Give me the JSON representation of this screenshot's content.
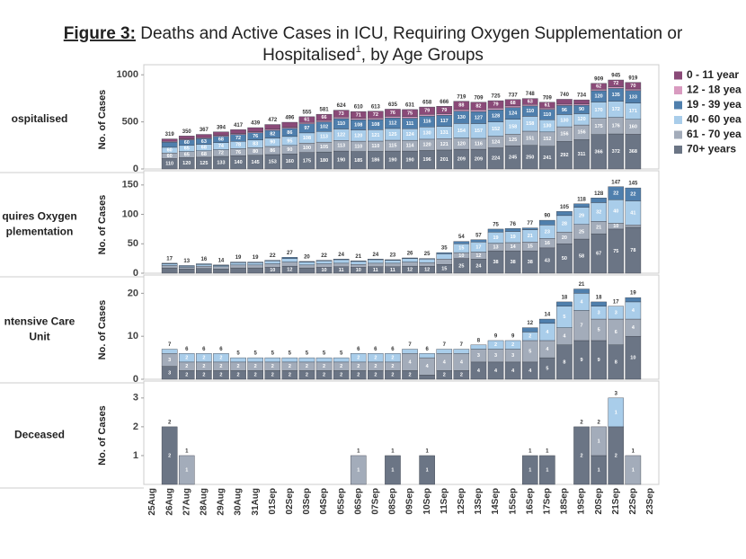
{
  "title": {
    "prefix": "Figure 3:",
    "line1": " Deaths and Active Cases in ICU, Requiring Oxygen Supplementation or",
    "line2a": "Hospitalised",
    "note": "1",
    "line2b": ", by Age Groups"
  },
  "chart_data": [
    {
      "type": "bar",
      "label": [
        "ospitalised"
      ],
      "ylabel": "No. of Cases",
      "ylim": [
        0,
        1050
      ],
      "yticks": [
        0,
        500,
        1000
      ],
      "series": [
        {
          "name": "0 - 11 year",
          "color": "#8a4a78",
          "values": [
            null,
            26,
            31,
            34,
            37,
            41,
            44,
            49,
            53,
            61,
            66,
            73,
            71,
            72,
            76,
            75,
            79,
            79,
            88,
            82,
            79,
            68,
            63,
            61,
            52,
            44,
            62,
            72,
            70,
            null
          ]
        },
        {
          "name": "12 - 18 yea",
          "color": "#d99bc0",
          "values": [
            null,
            8,
            9,
            9,
            10,
            10,
            11,
            12,
            12,
            14,
            15,
            16,
            16,
            16,
            17,
            17,
            17,
            17,
            18,
            18,
            18,
            17,
            16,
            15,
            14,
            13,
            16,
            18,
            17,
            null
          ]
        },
        {
          "name": "19 - 39 yea",
          "color": "#4f7fad",
          "values": [
            null,
            55,
            60,
            63,
            68,
            72,
            76,
            82,
            86,
            97,
            102,
            110,
            108,
            108,
            112,
            111,
            116,
            117,
            130,
            127,
            128,
            124,
            110,
            110,
            96,
            90,
            120,
            135,
            133,
            null
          ]
        },
        {
          "name": "40 - 60 yea",
          "color": "#a9cdea",
          "values": [
            null,
            60,
            65,
            68,
            74,
            78,
            83,
            90,
            95,
            108,
            113,
            122,
            120,
            121,
            125,
            124,
            130,
            131,
            154,
            157,
            152,
            158,
            158,
            130,
            130,
            120,
            170,
            172,
            171,
            null
          ]
        },
        {
          "name": "61 - 70 yea",
          "color": "#a3acba",
          "values": [
            null,
            60,
            65,
            68,
            72,
            76,
            80,
            86,
            90,
            100,
            105,
            113,
            110,
            110,
            115,
            114,
            120,
            121,
            120,
            116,
            124,
            125,
            151,
            152,
            156,
            156,
            175,
            176,
            160,
            null
          ]
        },
        {
          "name": "70+ years",
          "color": "#6b7585",
          "values": [
            null,
            110,
            120,
            125,
            133,
            140,
            145,
            153,
            160,
            175,
            180,
            190,
            185,
            186,
            190,
            190,
            196,
            201,
            209,
            209,
            224,
            245,
            250,
            241,
            292,
            311,
            366,
            372,
            368,
            null
          ]
        }
      ],
      "totals": [
        null,
        319,
        350,
        367,
        394,
        417,
        439,
        472,
        496,
        555,
        581,
        624,
        610,
        613,
        635,
        631,
        658,
        666,
        719,
        709,
        725,
        737,
        748,
        709,
        740,
        734,
        909,
        945,
        919,
        null
      ]
    },
    {
      "type": "bar",
      "label": [
        "quires Oxygen",
        "plementation"
      ],
      "ylabel": "No. of Cases",
      "ylim": [
        0,
        165
      ],
      "yticks": [
        0,
        50,
        100,
        150
      ],
      "series": [
        {
          "color": "#8a4a78",
          "values": [
            null,
            0,
            0,
            0,
            0,
            0,
            0,
            0,
            0,
            0,
            0,
            0,
            0,
            0,
            0,
            0,
            0,
            0,
            0,
            0,
            0,
            0,
            0,
            0,
            0,
            0,
            0,
            0,
            0,
            null
          ]
        },
        {
          "color": "#d99bc0",
          "values": [
            null,
            0,
            0,
            0,
            0,
            0,
            0,
            0,
            0,
            0,
            0,
            0,
            0,
            0,
            0,
            0,
            0,
            0,
            0,
            0,
            0,
            0,
            0,
            0,
            0,
            0,
            0,
            0,
            0,
            null
          ]
        },
        {
          "color": "#4f7fad",
          "values": [
            null,
            1,
            1,
            1,
            1,
            1,
            1,
            1,
            2,
            1,
            1,
            1,
            1,
            1,
            1,
            1,
            1,
            2,
            4,
            4,
            5,
            5,
            3,
            8,
            7,
            6,
            8,
            22,
            22,
            null
          ]
        },
        {
          "color": "#a9cdea",
          "values": [
            null,
            3,
            2,
            3,
            2,
            4,
            4,
            5,
            6,
            5,
            5,
            6,
            5,
            6,
            5,
            6,
            6,
            9,
            15,
            17,
            19,
            19,
            21,
            23,
            28,
            29,
            32,
            40,
            41,
            null
          ]
        },
        {
          "color": "#a3acba",
          "values": [
            null,
            4,
            3,
            4,
            4,
            5,
            5,
            6,
            7,
            5,
            6,
            6,
            5,
            6,
            6,
            7,
            6,
            9,
            10,
            12,
            13,
            14,
            15,
            16,
            20,
            25,
            21,
            10,
            4,
            null
          ]
        },
        {
          "color": "#6b7585",
          "values": [
            null,
            9,
            7,
            8,
            7,
            9,
            9,
            10,
            12,
            9,
            10,
            11,
            10,
            11,
            11,
            12,
            12,
            15,
            25,
            24,
            38,
            38,
            38,
            43,
            50,
            58,
            67,
            75,
            78,
            null
          ]
        }
      ],
      "totals": [
        null,
        17,
        13,
        16,
        14,
        19,
        19,
        22,
        27,
        20,
        22,
        24,
        21,
        24,
        23,
        26,
        25,
        35,
        54,
        57,
        75,
        76,
        77,
        90,
        105,
        118,
        128,
        147,
        145,
        null
      ]
    },
    {
      "type": "bar",
      "label": [
        "ntensive Care",
        "Unit"
      ],
      "ylabel": "No. of Cases",
      "ylim": [
        0,
        23
      ],
      "yticks": [
        0,
        10,
        20
      ],
      "series": [
        {
          "color": "#8a4a78",
          "values": [
            null,
            0,
            0,
            0,
            0,
            0,
            0,
            0,
            0,
            0,
            0,
            0,
            0,
            0,
            0,
            0,
            0,
            0,
            0,
            0,
            0,
            0,
            0,
            0,
            0,
            0,
            0,
            0,
            0,
            null
          ]
        },
        {
          "color": "#d99bc0",
          "values": [
            null,
            0,
            0,
            0,
            0,
            0,
            0,
            0,
            0,
            0,
            0,
            0,
            0,
            0,
            0,
            0,
            0,
            0,
            0,
            0,
            0,
            0,
            0,
            0,
            0,
            0,
            0,
            0,
            0,
            null
          ]
        },
        {
          "color": "#4f7fad",
          "values": [
            null,
            0,
            0,
            0,
            0,
            0,
            0,
            0,
            0,
            0,
            0,
            0,
            0,
            0,
            0,
            0,
            0,
            0,
            0,
            0,
            0,
            0,
            1,
            1,
            1,
            1,
            1,
            0,
            1,
            null
          ]
        },
        {
          "color": "#a9cdea",
          "values": [
            null,
            1,
            2,
            2,
            2,
            1,
            1,
            1,
            1,
            1,
            1,
            1,
            2,
            2,
            2,
            1,
            1,
            1,
            1,
            1,
            2,
            2,
            2,
            4,
            5,
            4,
            3,
            3,
            4,
            null
          ]
        },
        {
          "color": "#a3acba",
          "values": [
            null,
            3,
            2,
            2,
            2,
            2,
            2,
            2,
            2,
            2,
            2,
            2,
            2,
            2,
            2,
            4,
            4,
            4,
            4,
            3,
            3,
            3,
            5,
            4,
            4,
            7,
            5,
            6,
            4,
            null
          ]
        },
        {
          "color": "#6b7585",
          "values": [
            null,
            3,
            2,
            2,
            2,
            2,
            2,
            2,
            2,
            2,
            2,
            2,
            2,
            2,
            2,
            2,
            1,
            2,
            2,
            4,
            4,
            4,
            4,
            5,
            8,
            9,
            9,
            8,
            10,
            null
          ]
        }
      ],
      "totals": [
        null,
        7,
        6,
        6,
        6,
        5,
        5,
        5,
        5,
        5,
        5,
        5,
        6,
        6,
        6,
        7,
        6,
        7,
        7,
        8,
        9,
        9,
        12,
        14,
        18,
        21,
        18,
        17,
        19,
        null
      ]
    },
    {
      "type": "bar",
      "label": [
        "Deceased"
      ],
      "ylabel": "No. of Cases",
      "ylim": [
        0,
        3.4
      ],
      "yticks": [
        1,
        2,
        3
      ],
      "categories": [
        "25Aug",
        "26Aug",
        "27Aug",
        "28Aug",
        "29Aug",
        "30Aug",
        "31Aug",
        "01Sep",
        "02Sep",
        "03Sep",
        "04Sep",
        "05Sep",
        "06Sep",
        "07Sep",
        "08Sep",
        "09Sep",
        "10Sep",
        "11Sep",
        "12Sep",
        "13Sep",
        "14Sep",
        "15Sep",
        "16Sep",
        "17Sep",
        "18Sep",
        "19Sep",
        "20Sep",
        "21Sep",
        "22Sep",
        "23Sep"
      ],
      "series": [
        {
          "color": "#8a4a78",
          "values": [
            null,
            0,
            0,
            0,
            0,
            0,
            0,
            0,
            0,
            0,
            0,
            0,
            0,
            0,
            0,
            0,
            0,
            0,
            0,
            0,
            0,
            0,
            0,
            0,
            0,
            0,
            0,
            0,
            0,
            null
          ]
        },
        {
          "color": "#d99bc0",
          "values": [
            null,
            0,
            0,
            0,
            0,
            0,
            0,
            0,
            0,
            0,
            0,
            0,
            0,
            0,
            0,
            0,
            0,
            0,
            0,
            0,
            0,
            0,
            0,
            0,
            0,
            0,
            0,
            0,
            0,
            null
          ]
        },
        {
          "color": "#4f7fad",
          "values": [
            null,
            0,
            0,
            0,
            0,
            0,
            0,
            0,
            0,
            0,
            0,
            0,
            0,
            0,
            0,
            0,
            0,
            0,
            0,
            0,
            0,
            0,
            0,
            0,
            0,
            0,
            0,
            0,
            0,
            null
          ]
        },
        {
          "color": "#a9cdea",
          "values": [
            null,
            0,
            0,
            0,
            0,
            0,
            0,
            0,
            0,
            0,
            0,
            0,
            0,
            0,
            0,
            0,
            0,
            0,
            0,
            0,
            0,
            0,
            0,
            0,
            0,
            0,
            0,
            1,
            0,
            null
          ]
        },
        {
          "color": "#a3acba",
          "values": [
            null,
            0,
            1,
            0,
            0,
            0,
            0,
            0,
            0,
            0,
            0,
            0,
            1,
            0,
            0,
            0,
            0,
            0,
            0,
            0,
            0,
            0,
            0,
            0,
            0,
            0,
            1,
            0,
            1,
            null
          ]
        },
        {
          "color": "#6b7585",
          "values": [
            null,
            2,
            0,
            0,
            0,
            0,
            0,
            0,
            0,
            0,
            0,
            0,
            0,
            0,
            1,
            0,
            1,
            0,
            0,
            0,
            0,
            0,
            1,
            1,
            0,
            2,
            1,
            2,
            0,
            null
          ]
        }
      ],
      "totals": [
        null,
        2,
        1,
        null,
        null,
        null,
        null,
        null,
        null,
        null,
        null,
        null,
        1,
        null,
        1,
        null,
        1,
        null,
        null,
        null,
        null,
        null,
        1,
        1,
        null,
        2,
        2,
        3,
        1,
        null
      ]
    }
  ]
}
